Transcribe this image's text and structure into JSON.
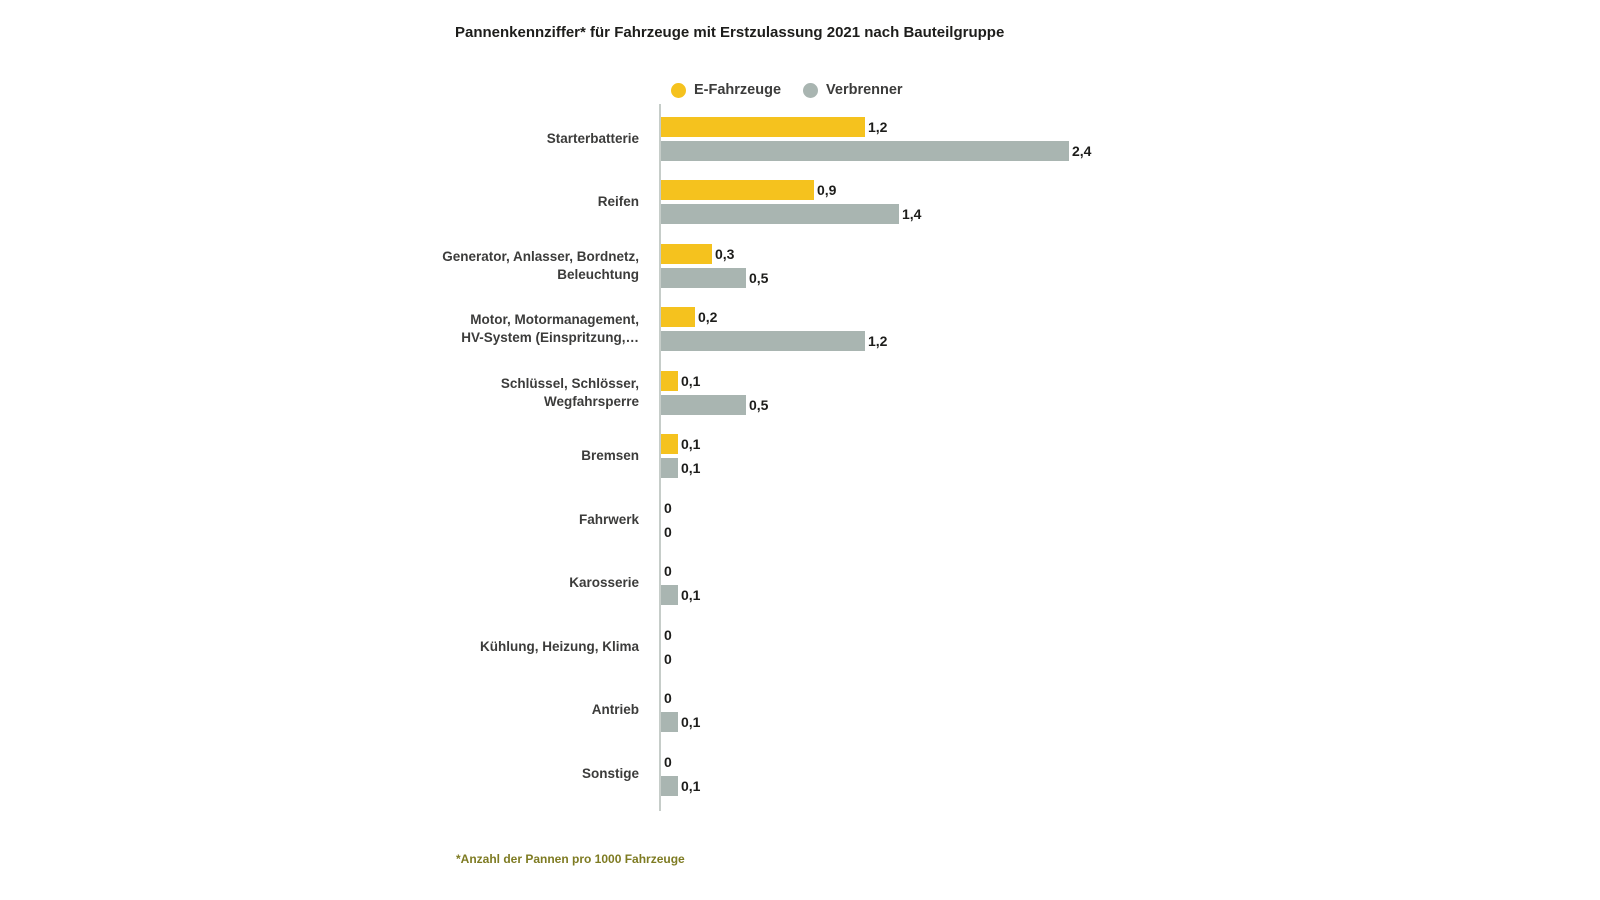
{
  "title": "Pannenkennziffer* für Fahrzeuge mit Erstzulassung 2021 nach Bauteilgruppe",
  "footnote": "*Anzahl der Pannen pro 1000 Fahrzeuge",
  "legend": {
    "items": [
      {
        "label": "E-Fahrzeuge",
        "color": "#F5C21E"
      },
      {
        "label": "Verbrenner",
        "color": "#A9B5B1"
      }
    ]
  },
  "colors": {
    "footnote": "#7E7B22",
    "axis": "#C6CDC9",
    "text": "#1D1D1B"
  },
  "chart_data": {
    "type": "bar",
    "orientation": "horizontal",
    "title": "Pannenkennziffer* für Fahrzeuge mit Erstzulassung 2021 nach Bauteilgruppe",
    "unit_note": "*Anzahl der Pannen pro 1000 Fahrzeuge",
    "xlim": [
      0,
      2.6
    ],
    "grid": false,
    "legend_position": "top",
    "value_label_format": "german-comma-decimal",
    "categories": [
      "Starterbatterie",
      "Reifen",
      "Generator, Anlasser, Bordnetz,\nBeleuchtung",
      "Motor, Motormanagement,\nHV-System (Einspritzung,…",
      "Schlüssel, Schlösser,\nWegfahrsperre",
      "Bremsen",
      "Fahrwerk",
      "Karosserie",
      "Kühlung, Heizung, Klima",
      "Antrieb",
      "Sonstige"
    ],
    "series": [
      {
        "name": "E-Fahrzeuge",
        "color": "#F5C21E",
        "values": [
          1.2,
          0.9,
          0.3,
          0.2,
          0.1,
          0.1,
          0,
          0,
          0,
          0,
          0
        ]
      },
      {
        "name": "Verbrenner",
        "color": "#A9B5B1",
        "values": [
          2.4,
          1.4,
          0.5,
          1.2,
          0.5,
          0.1,
          0,
          0.1,
          0,
          0.1,
          0.1
        ]
      }
    ]
  }
}
